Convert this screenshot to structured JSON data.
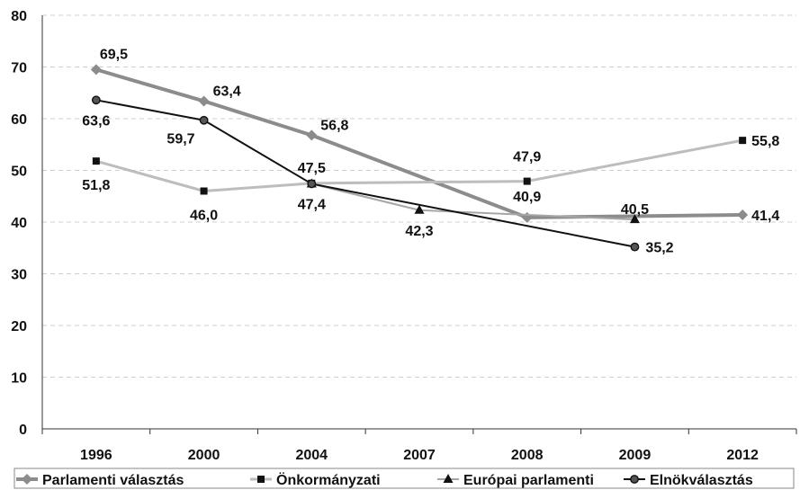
{
  "chart_data": {
    "type": "line",
    "categories": [
      "1996",
      "2000",
      "2004",
      "2007",
      "2008",
      "2009",
      "2012"
    ],
    "ylim": [
      0,
      80
    ],
    "yticks": [
      0,
      10,
      20,
      30,
      40,
      50,
      60,
      70,
      80
    ],
    "grid": true,
    "legend_position": "bottom",
    "series": [
      {
        "name": "Parlamenti választás",
        "color": "#8c8c8c",
        "marker": "diamond",
        "points": [
          {
            "x": "1996",
            "y": 69.5,
            "label": "69,5"
          },
          {
            "x": "2000",
            "y": 63.4,
            "label": "63,4"
          },
          {
            "x": "2004",
            "y": 56.8,
            "label": "56,8"
          },
          {
            "x": "2008",
            "y": 40.9,
            "label": "40,9"
          },
          {
            "x": "2012",
            "y": 41.4,
            "label": "41,4"
          }
        ]
      },
      {
        "name": "Önkormányzati",
        "color": "#bdbdbd",
        "marker": "square",
        "points": [
          {
            "x": "1996",
            "y": 51.8,
            "label": "51,8"
          },
          {
            "x": "2000",
            "y": 46.0,
            "label": "46,0"
          },
          {
            "x": "2004",
            "y": 47.5,
            "label": "47,5"
          },
          {
            "x": "2008",
            "y": 47.9,
            "label": "47,9"
          },
          {
            "x": "2012",
            "y": 55.8,
            "label": "55,8"
          }
        ]
      },
      {
        "name": "Európai parlamenti",
        "color": "#a6a6a6",
        "marker": "triangle",
        "points": [
          {
            "x": "2004",
            "y": 47.4,
            "label": "47,4"
          },
          {
            "x": "2007",
            "y": 42.3,
            "label": "42,3"
          },
          {
            "x": "2009",
            "y": 40.5,
            "label": "40,5"
          }
        ]
      },
      {
        "name": "Elnökválasztás",
        "color": "#111111",
        "marker": "circle",
        "points": [
          {
            "x": "1996",
            "y": 63.6,
            "label": "63,6"
          },
          {
            "x": "2000",
            "y": 59.7,
            "label": "59,7"
          },
          {
            "x": "2004",
            "y": 47.4,
            "label": ""
          },
          {
            "x": "2009",
            "y": 35.2,
            "label": "35,2"
          }
        ]
      }
    ]
  }
}
